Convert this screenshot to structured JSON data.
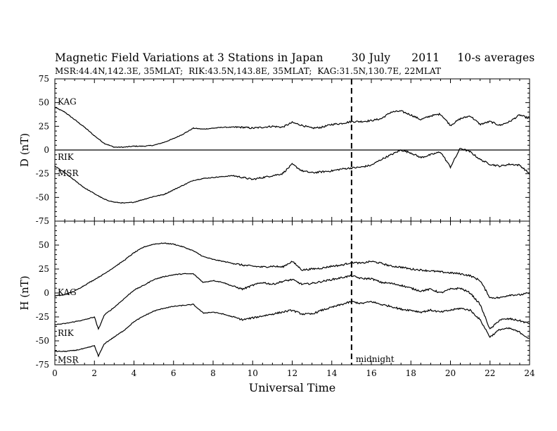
{
  "header": {
    "title_parts": [
      "Magnetic Field Variations at 3 Stations in Japan",
      "30 July",
      "2011",
      "10-s averages"
    ],
    "subtitle_parts": [
      "MSR:44.4N,142.3E, 35MLAT;",
      "RIK:43.5N,143.8E, 35MLAT;",
      "KAG:31.5N,130.7E, 22MLAT"
    ]
  },
  "chart_data": [
    {
      "type": "line",
      "panel": "top",
      "ylabel": "D (nT)",
      "ylim": [
        -75,
        75
      ],
      "yticks": [
        75,
        50,
        25,
        0,
        -25,
        -50,
        -75
      ],
      "xlim": [
        0,
        24
      ],
      "grid": false,
      "series": [
        {
          "name": "KAG",
          "x": [
            0,
            0.5,
            1,
            1.5,
            2,
            2.5,
            3,
            3.5,
            4,
            4.5,
            5,
            5.5,
            6,
            6.5,
            7,
            7.5,
            8,
            8.5,
            9,
            9.5,
            10,
            10.5,
            11,
            11.5,
            12,
            12.5,
            13,
            13.5,
            14,
            14.5,
            15,
            15.5,
            16,
            16.5,
            17,
            17.5,
            18,
            18.5,
            19,
            19.5,
            20,
            20.5,
            21,
            21.5,
            22,
            22.5,
            23,
            23.5,
            24
          ],
          "values": [
            45,
            40,
            32,
            24,
            15,
            7,
            3,
            3,
            4,
            4,
            5,
            8,
            12,
            17,
            23,
            22,
            23,
            24,
            24,
            24,
            23,
            24,
            25,
            24,
            29,
            26,
            23,
            24,
            27,
            28,
            30,
            30,
            31,
            33,
            40,
            41,
            37,
            32,
            36,
            38,
            26,
            33,
            36,
            27,
            30,
            26,
            30,
            37,
            33
          ]
        },
        {
          "name": "RIK",
          "x": [
            0,
            24
          ],
          "values": [
            0,
            0
          ]
        },
        {
          "name": "MSR",
          "x": [
            0,
            0.5,
            1,
            1.5,
            2,
            2.5,
            3,
            3.5,
            4,
            4.5,
            5,
            5.5,
            6,
            6.5,
            7,
            7.5,
            8,
            8.5,
            9,
            9.5,
            10,
            10.5,
            11,
            11.5,
            12,
            12.5,
            13,
            13.5,
            14,
            14.5,
            15,
            15.5,
            16,
            16.5,
            17,
            17.5,
            18,
            18.5,
            19,
            19.5,
            20,
            20.5,
            21,
            21.5,
            22,
            22.5,
            23,
            23.5,
            24
          ],
          "values": [
            -17,
            -24,
            -32,
            -40,
            -46,
            -52,
            -55,
            -56,
            -55,
            -52,
            -49,
            -47,
            -42,
            -37,
            -32,
            -30,
            -29,
            -28,
            -27,
            -29,
            -31,
            -29,
            -27,
            -25,
            -15,
            -22,
            -24,
            -23,
            -22,
            -20,
            -19,
            -18,
            -16,
            -10,
            -5,
            0,
            -3,
            -8,
            -5,
            -2,
            -18,
            2,
            -2,
            -10,
            -15,
            -17,
            -15,
            -16,
            -25
          ]
        }
      ]
    },
    {
      "type": "line",
      "panel": "bottom",
      "ylabel": "H (nT)",
      "xlabel": "Universal Time",
      "ylim": [
        -75,
        75
      ],
      "yticks": [
        50,
        25,
        0,
        -25,
        -50,
        -75
      ],
      "xlim": [
        0,
        24
      ],
      "xticks": [
        0,
        2,
        4,
        6,
        8,
        10,
        12,
        14,
        16,
        18,
        20,
        22,
        24
      ],
      "grid": false,
      "series": [
        {
          "name": "KAG",
          "x": [
            0,
            0.5,
            1,
            1.5,
            2,
            2.5,
            3,
            3.5,
            4,
            4.5,
            5,
            5.5,
            6,
            6.5,
            7,
            7.5,
            8,
            8.5,
            9,
            9.5,
            10,
            10.5,
            11,
            11.5,
            12,
            12.5,
            13,
            13.5,
            14,
            14.5,
            15,
            15.5,
            16,
            16.5,
            17,
            17.5,
            18,
            18.5,
            19,
            19.5,
            20,
            20.5,
            21,
            21.5,
            22,
            22.5,
            23,
            23.5,
            24
          ],
          "values": [
            -3,
            -2,
            2,
            8,
            14,
            20,
            27,
            34,
            42,
            48,
            51,
            52,
            51,
            48,
            44,
            38,
            35,
            33,
            31,
            29,
            28,
            27,
            28,
            27,
            33,
            24,
            25,
            26,
            28,
            29,
            32,
            31,
            33,
            31,
            28,
            27,
            25,
            24,
            23,
            22,
            21,
            20,
            18,
            13,
            -5,
            -5,
            -2,
            -2,
            0
          ]
        },
        {
          "name": "RIK",
          "x": [
            0,
            0.5,
            1,
            1.5,
            2,
            2.2,
            2.5,
            3,
            3.5,
            4,
            4.5,
            5,
            5.5,
            6,
            6.5,
            7,
            7.5,
            8,
            8.5,
            9,
            9.5,
            10,
            10.5,
            11,
            11.5,
            12,
            12.5,
            13,
            13.5,
            14,
            14.5,
            15,
            15.5,
            16,
            16.5,
            17,
            17.5,
            18,
            18.5,
            19,
            19.5,
            20,
            20.5,
            21,
            21.5,
            22,
            22.5,
            23,
            23.5,
            24
          ],
          "values": [
            -33,
            -32,
            -30,
            -28,
            -25,
            -38,
            -23,
            -15,
            -6,
            3,
            8,
            14,
            17,
            19,
            20,
            20,
            11,
            13,
            11,
            7,
            4,
            8,
            11,
            9,
            12,
            14,
            9,
            10,
            12,
            14,
            16,
            18,
            15,
            15,
            11,
            10,
            8,
            5,
            2,
            4,
            0,
            4,
            5,
            0,
            -12,
            -38,
            -28,
            -27,
            -29,
            -32
          ]
        },
        {
          "name": "MSR",
          "x": [
            0,
            0.5,
            1,
            1.5,
            2,
            2.2,
            2.5,
            3,
            3.5,
            4,
            4.5,
            5,
            5.5,
            6,
            6.5,
            7,
            7.5,
            8,
            8.5,
            9,
            9.5,
            10,
            10.5,
            11,
            11.5,
            12,
            12.5,
            13,
            13.5,
            14,
            14.5,
            15,
            15.5,
            16,
            16.5,
            17,
            17.5,
            18,
            18.5,
            19,
            19.5,
            20,
            20.5,
            21,
            21.5,
            22,
            22.5,
            23,
            23.5,
            24
          ],
          "values": [
            -61,
            -61,
            -60,
            -58,
            -55,
            -66,
            -53,
            -46,
            -39,
            -30,
            -24,
            -19,
            -16,
            -14,
            -13,
            -12,
            -21,
            -20,
            -22,
            -25,
            -28,
            -26,
            -24,
            -22,
            -20,
            -18,
            -22,
            -22,
            -18,
            -15,
            -12,
            -9,
            -11,
            -9,
            -12,
            -14,
            -17,
            -18,
            -20,
            -18,
            -20,
            -18,
            -16,
            -18,
            -28,
            -46,
            -38,
            -37,
            -41,
            -48
          ]
        }
      ],
      "annotations": [
        {
          "text": "midnight",
          "x": 15
        }
      ]
    }
  ],
  "midnight_ut": 15,
  "colors": {
    "line": "#000000",
    "background": "#ffffff"
  }
}
